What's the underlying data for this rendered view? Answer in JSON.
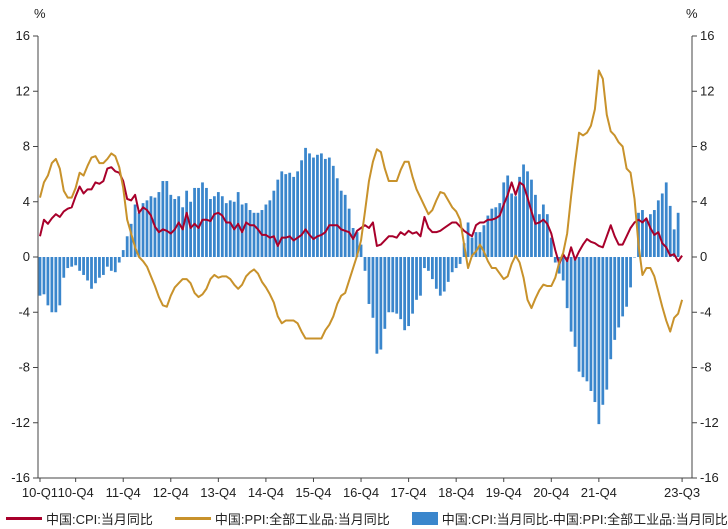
{
  "chart_data": {
    "type": "bar+line",
    "y_unit_left": "%",
    "y_unit_right": "%",
    "ylim": [
      -16,
      16
    ],
    "yticks": [
      -16,
      -12,
      -8,
      -4,
      0,
      4,
      8,
      12,
      16
    ],
    "x_tick_labels": [
      "10-Q1",
      "10-Q4",
      "11-Q4",
      "12-Q4",
      "13-Q4",
      "14-Q4",
      "15-Q4",
      "16-Q4",
      "17-Q4",
      "18-Q4",
      "19-Q4",
      "20-Q4",
      "21-Q4",
      "23-Q3"
    ],
    "x_tick_months": [
      0,
      9,
      21,
      33,
      45,
      57,
      69,
      81,
      93,
      105,
      117,
      129,
      141,
      162
    ],
    "n_months": 165,
    "grid": false,
    "legend_position": "bottom",
    "series": [
      {
        "name": "中国:CPI:当月同比",
        "kind": "line",
        "color": "#a8002b",
        "values": [
          1.5,
          2.7,
          2.4,
          2.8,
          3.1,
          2.9,
          3.3,
          3.5,
          3.6,
          4.4,
          5.1,
          4.6,
          4.9,
          4.9,
          5.4,
          5.3,
          5.5,
          6.4,
          6.5,
          6.2,
          6.1,
          5.5,
          4.2,
          4.1,
          4.5,
          3.2,
          3.6,
          3.4,
          3.0,
          2.2,
          1.8,
          2.0,
          1.9,
          1.7,
          2.0,
          2.5,
          2.0,
          3.2,
          2.1,
          2.4,
          2.1,
          2.7,
          2.7,
          2.6,
          3.1,
          3.2,
          3.0,
          2.5,
          2.5,
          2.0,
          2.4,
          1.8,
          2.5,
          2.3,
          2.3,
          2.0,
          1.6,
          1.6,
          1.4,
          1.5,
          0.8,
          1.4,
          1.4,
          1.5,
          1.2,
          1.4,
          1.6,
          2.0,
          1.6,
          1.3,
          1.5,
          1.6,
          1.8,
          2.3,
          2.3,
          2.3,
          2.0,
          1.9,
          1.8,
          1.3,
          1.9,
          2.1,
          2.3,
          2.1,
          2.5,
          0.8,
          0.9,
          1.2,
          1.5,
          1.5,
          1.4,
          1.8,
          1.6,
          1.9,
          1.7,
          1.8,
          1.5,
          2.9,
          2.1,
          1.8,
          1.8,
          1.9,
          2.1,
          2.3,
          2.5,
          2.5,
          2.2,
          1.9,
          1.7,
          1.5,
          2.3,
          2.5,
          2.5,
          2.7,
          2.7,
          2.8,
          3.0,
          3.8,
          4.5,
          5.4,
          4.5,
          5.4,
          5.2,
          4.3,
          3.3,
          2.4,
          2.5,
          2.7,
          2.4,
          1.7,
          0.5,
          -0.5,
          0.2,
          -0.3,
          0.7,
          -0.2,
          0.4,
          0.9,
          1.3,
          1.1,
          1.0,
          0.8,
          0.7,
          1.5,
          2.3,
          1.5,
          0.9,
          0.9,
          1.5,
          2.1,
          2.5,
          2.7,
          2.5,
          2.8,
          2.1,
          1.6,
          1.8,
          1.0,
          0.7,
          0.1,
          0.2,
          -0.3,
          0.1
        ]
      },
      {
        "name": "中国:PPI:全部工业品:当月同比",
        "kind": "line",
        "color": "#c8922b",
        "values": [
          4.3,
          5.4,
          5.9,
          6.8,
          7.1,
          6.4,
          4.8,
          4.3,
          4.3,
          5.0,
          6.1,
          5.9,
          6.6,
          7.2,
          7.3,
          6.8,
          6.8,
          7.1,
          7.5,
          7.3,
          6.5,
          5.0,
          2.7,
          1.7,
          0.7,
          0.0,
          -0.3,
          -0.7,
          -1.4,
          -2.1,
          -2.9,
          -3.5,
          -3.6,
          -2.8,
          -2.2,
          -1.9,
          -1.6,
          -1.6,
          -1.9,
          -2.6,
          -2.9,
          -2.7,
          -2.3,
          -1.6,
          -1.3,
          -1.5,
          -1.4,
          -1.4,
          -1.6,
          -2.0,
          -2.3,
          -2.0,
          -1.4,
          -1.1,
          -0.9,
          -1.2,
          -1.8,
          -2.2,
          -2.7,
          -3.3,
          -4.3,
          -4.8,
          -4.6,
          -4.6,
          -4.6,
          -4.8,
          -5.4,
          -5.9,
          -5.9,
          -5.9,
          -5.9,
          -5.9,
          -5.3,
          -4.9,
          -4.3,
          -3.4,
          -2.8,
          -2.6,
          -1.7,
          -0.8,
          0.1,
          1.2,
          3.3,
          5.5,
          6.9,
          7.8,
          7.6,
          6.4,
          5.5,
          5.5,
          5.5,
          6.3,
          6.9,
          6.9,
          5.8,
          4.9,
          4.3,
          3.7,
          3.1,
          3.4,
          4.1,
          4.7,
          4.6,
          4.1,
          3.6,
          3.3,
          2.7,
          0.9,
          -0.8,
          0.1,
          0.4,
          0.9,
          0.4,
          -0.3,
          -0.8,
          -0.8,
          -1.2,
          -1.6,
          -1.4,
          -0.5,
          0.1,
          -0.4,
          -1.5,
          -3.1,
          -3.7,
          -3.0,
          -2.4,
          -2.0,
          -2.1,
          -2.1,
          -1.5,
          -0.4,
          0.3,
          1.7,
          4.4,
          6.8,
          9.0,
          8.8,
          9.0,
          9.5,
          10.7,
          13.5,
          12.9,
          10.3,
          9.1,
          8.8,
          8.3,
          8.0,
          6.4,
          6.1,
          4.2,
          0.9,
          -1.3,
          -0.8,
          -0.8,
          -1.4,
          -2.5,
          -3.6,
          -4.6,
          -5.4,
          -4.4,
          -4.1,
          -3.1
        ]
      },
      {
        "name": "中国:CPI:当月同比-中国:PPI:全部工业品:当月同比",
        "kind": "bar",
        "color": "#3a86cc",
        "values": [
          -2.8,
          -2.7,
          -3.5,
          -4.0,
          -4.0,
          -3.5,
          -1.5,
          -0.8,
          -0.7,
          -0.6,
          -1.0,
          -1.3,
          -1.7,
          -2.3,
          -1.9,
          -1.5,
          -1.3,
          -0.7,
          -1.0,
          -1.1,
          -0.4,
          0.5,
          1.5,
          2.4,
          3.8,
          3.2,
          3.9,
          4.1,
          4.4,
          4.3,
          4.7,
          5.5,
          5.5,
          4.5,
          4.2,
          4.4,
          3.6,
          4.8,
          4.0,
          5.0,
          5.0,
          5.4,
          5.0,
          4.2,
          4.4,
          4.7,
          4.4,
          3.9,
          4.1,
          4.0,
          4.7,
          3.8,
          3.9,
          3.4,
          3.2,
          3.2,
          3.4,
          3.8,
          4.1,
          4.8,
          5.6,
          6.2,
          6.0,
          6.1,
          5.8,
          6.2,
          7.0,
          7.9,
          7.5,
          7.2,
          7.4,
          7.5,
          7.1,
          7.2,
          6.6,
          5.7,
          4.8,
          4.5,
          3.5,
          2.1,
          1.8,
          0.9,
          -1.0,
          -3.4,
          -4.4,
          -7.0,
          -6.7,
          -5.2,
          -4.0,
          -4.0,
          -4.1,
          -4.5,
          -5.3,
          -5.0,
          -4.1,
          -3.1,
          -2.8,
          -0.8,
          -1.0,
          -1.6,
          -2.3,
          -2.8,
          -2.5,
          -1.8,
          -1.1,
          -0.8,
          -0.5,
          1.0,
          2.5,
          1.4,
          1.8,
          1.8,
          2.3,
          3.0,
          3.5,
          3.6,
          3.9,
          5.4,
          5.9,
          4.6,
          4.4,
          5.8,
          6.7,
          6.2,
          5.6,
          4.5,
          3.1,
          3.8,
          3.1,
          1.4,
          -0.4,
          -1.2,
          -1.7,
          -3.7,
          -5.4,
          -6.5,
          -8.3,
          -8.7,
          -9.0,
          -9.7,
          -10.5,
          -12.1,
          -10.7,
          -9.6,
          -7.4,
          -6.0,
          -5.1,
          -4.3,
          -3.6,
          -2.2,
          0.0,
          3.2,
          3.4,
          2.7,
          3.1,
          3.4,
          4.1,
          4.6,
          5.4,
          3.7,
          2.0,
          3.2
        ]
      }
    ]
  }
}
